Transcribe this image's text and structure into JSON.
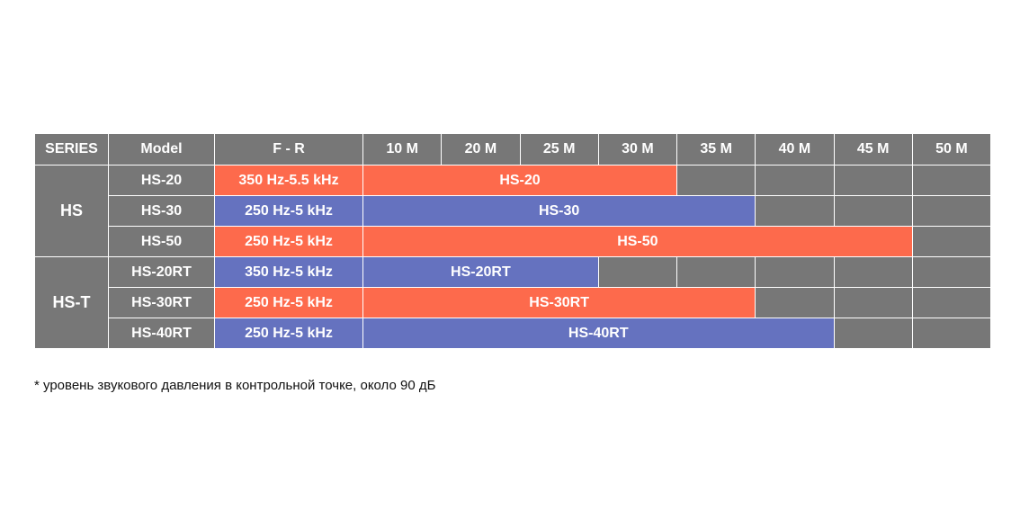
{
  "table": {
    "headers": {
      "series": "SERIES",
      "model": "Model",
      "fr": "F - R",
      "distances": [
        "10 M",
        "20 M",
        "25 M",
        "30 M",
        "35 M",
        "40 M",
        "45 M",
        "50 M"
      ]
    },
    "groups": [
      {
        "series": "HS",
        "rows": [
          {
            "model": "HS-20",
            "fr": "350 Hz-5.5 kHz",
            "bar": "HS-20",
            "span": 4,
            "color": "#fd6a4c"
          },
          {
            "model": "HS-30",
            "fr": "250 Hz-5 kHz",
            "bar": "HS-30",
            "span": 5,
            "color": "#6572bf"
          },
          {
            "model": "HS-50",
            "fr": "250 Hz-5 kHz",
            "bar": "HS-50",
            "span": 7,
            "color": "#fd6a4c"
          }
        ]
      },
      {
        "series": "HS-T",
        "rows": [
          {
            "model": "HS-20RT",
            "fr": "350 Hz-5 kHz",
            "bar": "HS-20RT",
            "span": 3,
            "color": "#6572bf"
          },
          {
            "model": "HS-30RT",
            "fr": "250 Hz-5 kHz",
            "bar": "HS-30RT",
            "span": 5,
            "color": "#fd6a4c"
          },
          {
            "model": "HS-40RT",
            "fr": "250 Hz-5 kHz",
            "bar": "HS-40RT",
            "span": 6,
            "color": "#6572bf"
          }
        ]
      }
    ]
  },
  "footnote": "* уровень звукового давления в контрольной точке, около 90 дБ"
}
